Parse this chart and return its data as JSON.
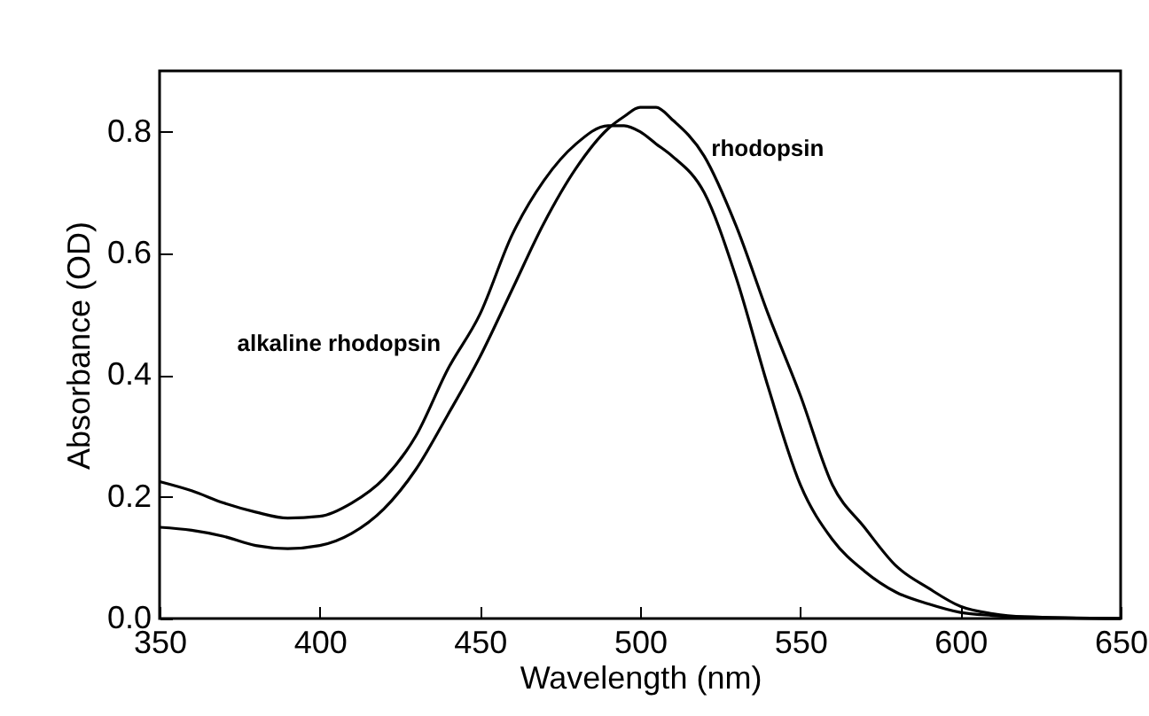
{
  "chart_data": {
    "type": "line",
    "xlabel": "Wavelength (nm)",
    "ylabel": "Absorbance (OD)",
    "x": [
      350,
      360,
      370,
      380,
      390,
      400,
      410,
      420,
      430,
      440,
      450,
      460,
      470,
      480,
      490,
      495,
      500,
      505,
      510,
      520,
      530,
      540,
      550,
      560,
      570,
      580,
      590,
      600,
      610,
      620,
      650
    ],
    "series": [
      {
        "name": "alkaline rhodopsin",
        "color": "#000000",
        "values": [
          0.225,
          0.21,
          0.19,
          0.175,
          0.165,
          0.168,
          0.19,
          0.23,
          0.3,
          0.41,
          0.5,
          0.63,
          0.72,
          0.78,
          0.81,
          0.81,
          0.8,
          0.78,
          0.76,
          0.7,
          0.56,
          0.38,
          0.22,
          0.13,
          0.078,
          0.043,
          0.024,
          0.01,
          0.005,
          0.002,
          0
        ]
      },
      {
        "name": "rhodopsin",
        "color": "#000000",
        "values": [
          0.15,
          0.145,
          0.135,
          0.12,
          0.115,
          0.12,
          0.14,
          0.18,
          0.245,
          0.335,
          0.43,
          0.54,
          0.65,
          0.74,
          0.805,
          0.825,
          0.84,
          0.84,
          0.82,
          0.76,
          0.645,
          0.5,
          0.367,
          0.22,
          0.15,
          0.086,
          0.05,
          0.02,
          0.008,
          0.003,
          0
        ]
      }
    ],
    "xlim": [
      350,
      650
    ],
    "xticks": [
      350,
      400,
      450,
      500,
      550,
      600,
      650
    ],
    "ylim": [
      0,
      0.9
    ],
    "yticks": [
      {
        "value": 0,
        "label": "0.0"
      },
      {
        "value": 0.2,
        "label": "0.2"
      },
      {
        "value": 0.4,
        "label": "0.4"
      },
      {
        "value": 0.6,
        "label": "0.6"
      },
      {
        "value": 0.8,
        "label": "0.8"
      }
    ],
    "grid": false,
    "legend": false,
    "marker": "none",
    "line_style": "solid"
  }
}
